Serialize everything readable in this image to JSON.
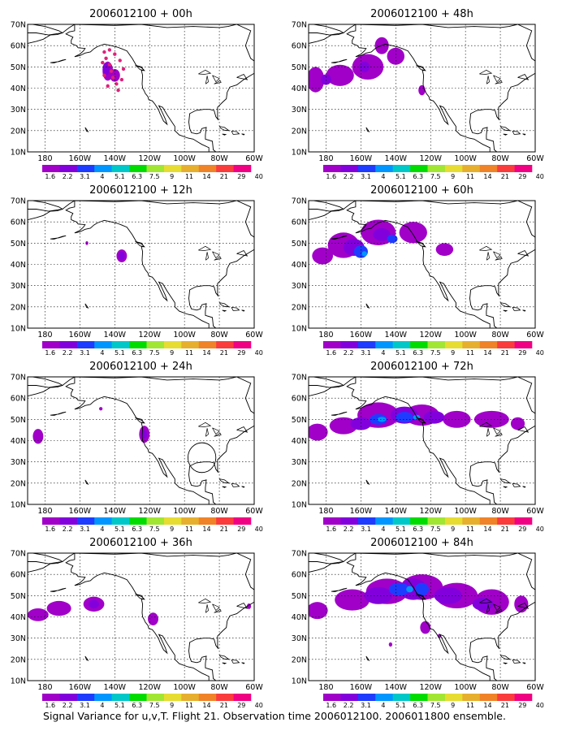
{
  "figure": {
    "caption": "Signal Variance for u,v,T. Flight 21. Observation time 2006012100. 2006011800 ensemble."
  },
  "map": {
    "lon_range": [
      -190,
      -60
    ],
    "lat_range": [
      10,
      70
    ],
    "lon_ticks": [
      {
        "lon": -180,
        "label": "180"
      },
      {
        "lon": -160,
        "label": "160W"
      },
      {
        "lon": -140,
        "label": "140W"
      },
      {
        "lon": -120,
        "label": "120W"
      },
      {
        "lon": -100,
        "label": "100W"
      },
      {
        "lon": -80,
        "label": "80W"
      },
      {
        "lon": -60,
        "label": "60W"
      }
    ],
    "lat_ticks": [
      {
        "lat": 70,
        "label": "70N"
      },
      {
        "lat": 60,
        "label": "60N"
      },
      {
        "lat": 50,
        "label": "50N"
      },
      {
        "lat": 40,
        "label": "40N"
      },
      {
        "lat": 30,
        "label": "30N"
      },
      {
        "lat": 20,
        "label": "20N"
      },
      {
        "lat": 10,
        "label": "10N"
      }
    ],
    "grid_lons": [
      -180,
      -160,
      -140,
      -120,
      -100,
      -80
    ],
    "grid_lats": [
      20,
      30,
      40,
      50,
      60
    ]
  },
  "colorbar": {
    "colors": [
      "#a000c8",
      "#8200dc",
      "#1e3cff",
      "#0096ff",
      "#00c8c8",
      "#00dc00",
      "#a0e632",
      "#e6dc32",
      "#e6af2d",
      "#f08228",
      "#fa3c3c",
      "#f00082"
    ],
    "labels": [
      "1.6",
      "2.2",
      "3.1",
      "4",
      "5.1",
      "6.3",
      "7.5",
      "9",
      "11",
      "14",
      "21",
      "29",
      "40"
    ]
  },
  "panels": [
    {
      "title": "2006012100 + 00h"
    },
    {
      "title": "2006012100 + 12h"
    },
    {
      "title": "2006012100 + 24h"
    },
    {
      "title": "2006012100 + 36h"
    },
    {
      "title": "2006012100 + 48h"
    },
    {
      "title": "2006012100 + 60h"
    },
    {
      "title": "2006012100 + 72h"
    },
    {
      "title": "2006012100 + 84h"
    }
  ]
}
